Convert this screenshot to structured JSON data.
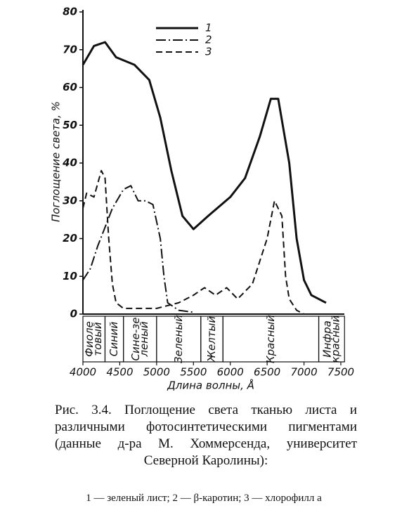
{
  "chart_data": {
    "type": "line",
    "y_label": "Поглощение света, %",
    "x_label": "Длина волны, Å",
    "xlim": [
      4000,
      7500
    ],
    "xticks": [
      4000,
      4500,
      5000,
      5500,
      6000,
      6500,
      7000,
      7500
    ],
    "ylim": [
      0,
      80
    ],
    "yticks": [
      0,
      10,
      20,
      30,
      40,
      50,
      60,
      70,
      80
    ],
    "series": [
      {
        "name": "1",
        "color": "#111111",
        "style": "solid",
        "x": [
          4000,
          4150,
          4300,
          4450,
          4700,
          4900,
          5050,
          5200,
          5350,
          5500,
          5700,
          6000,
          6200,
          6400,
          6550,
          6650,
          6800,
          6900,
          7000,
          7100,
          7300
        ],
        "values": [
          66,
          71,
          72,
          68,
          66,
          62,
          52,
          38,
          26,
          22.5,
          26,
          31,
          36,
          47,
          57,
          57,
          40,
          20,
          9,
          5,
          3
        ]
      },
      {
        "name": "2",
        "color": "#111111",
        "style": "dash-dot",
        "x": [
          4000,
          4100,
          4200,
          4300,
          4400,
          4550,
          4650,
          4750,
          4850,
          4950,
          5050,
          5100,
          5150,
          5300,
          5500
        ],
        "values": [
          9,
          12,
          18,
          23,
          28,
          33,
          34,
          30,
          30,
          29,
          20,
          10,
          3,
          1,
          0.5
        ]
      },
      {
        "name": "3",
        "color": "#111111",
        "style": "dashed",
        "x": [
          4000,
          4050,
          4150,
          4250,
          4300,
          4350,
          4400,
          4450,
          4550,
          5000,
          5300,
          5500,
          5650,
          5800,
          5950,
          6100,
          6300,
          6500,
          6600,
          6700,
          6750,
          6800,
          6900,
          7000
        ],
        "values": [
          28,
          32,
          31,
          38,
          36,
          20,
          8,
          3,
          1.5,
          1.5,
          3,
          5,
          7,
          5,
          7,
          4,
          8,
          20,
          30,
          26,
          10,
          4,
          1,
          0
        ]
      }
    ],
    "bands": {
      "edges": [
        4000,
        4300,
        4550,
        5000,
        5600,
        5900,
        7200,
        7550
      ],
      "labels": [
        [
          "Фиоле",
          "товый"
        ],
        [
          "Синий"
        ],
        [
          "Сине-зе",
          "леный"
        ],
        [
          "Зеленый"
        ],
        [
          "Желтый"
        ],
        [
          "Красный"
        ],
        [
          "Инфра",
          "красный"
        ]
      ]
    },
    "caption": "Рис. 3.4. Поглощение света тканью листа и различными фотосинтетическими пигментами (данные д-ра М. Хоммерсенда, университет Северной Каролины):",
    "caption_note": "1 — зеленый лист; 2 — β-каротин; 3 — хлорофилл a"
  }
}
